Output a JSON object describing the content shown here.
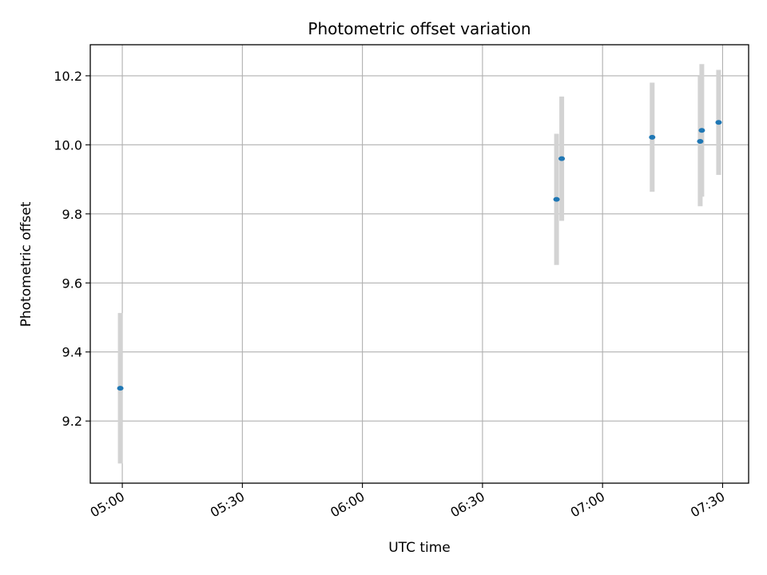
{
  "chart_data": {
    "type": "scatter",
    "title": "Photometric offset variation",
    "xlabel": "UTC time",
    "ylabel": "Photometric offset",
    "x_ticks": [
      "05:00",
      "05:30",
      "06:00",
      "06:30",
      "07:00",
      "07:30"
    ],
    "x_tick_minutes": [
      300,
      330,
      360,
      390,
      420,
      450
    ],
    "xlim_minutes": [
      292,
      456.5
    ],
    "y_ticks": [
      "9.2",
      "9.4",
      "9.6",
      "9.8",
      "10.0",
      "10.2"
    ],
    "y_tick_values": [
      9.2,
      9.4,
      9.6,
      9.8,
      10.0,
      10.2
    ],
    "ylim": [
      9.02,
      10.29
    ],
    "grid": true,
    "colors": {
      "point": "#1f77b4",
      "errorbar": "#d3d3d3",
      "grid": "#b0b0b0"
    },
    "points": [
      {
        "time": "04:59:30",
        "minutes": 299.5,
        "y": 9.295,
        "yerr": 0.218
      },
      {
        "time": "06:48:30",
        "minutes": 408.5,
        "y": 9.842,
        "yerr": 0.19
      },
      {
        "time": "06:49:48",
        "minutes": 409.8,
        "y": 9.96,
        "yerr": 0.18
      },
      {
        "time": "07:12:24",
        "minutes": 432.4,
        "y": 10.022,
        "yerr": 0.158
      },
      {
        "time": "07:24:24",
        "minutes": 444.4,
        "y": 10.01,
        "yerr": 0.188
      },
      {
        "time": "07:24:48",
        "minutes": 444.8,
        "y": 10.042,
        "yerr": 0.192
      },
      {
        "time": "07:29:00",
        "minutes": 449.0,
        "y": 10.065,
        "yerr": 0.152
      }
    ]
  }
}
